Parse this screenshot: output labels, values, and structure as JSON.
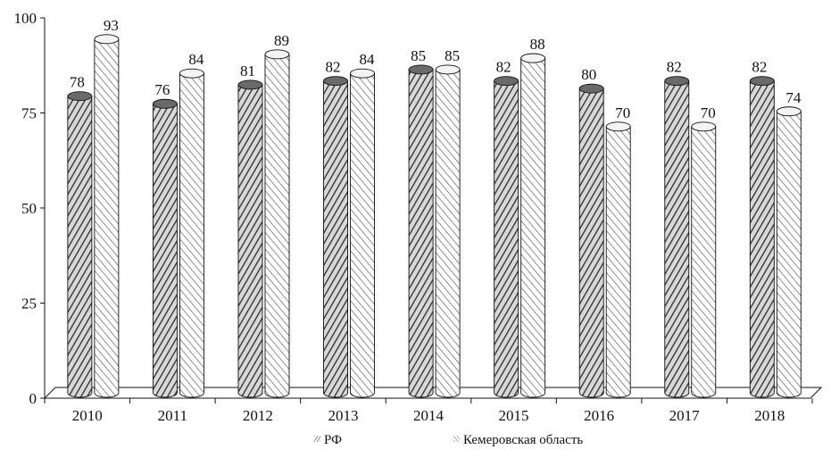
{
  "chart_data": {
    "type": "bar",
    "categories": [
      "2010",
      "2011",
      "2012",
      "2013",
      "2014",
      "2015",
      "2016",
      "2017",
      "2018"
    ],
    "series": [
      {
        "name": "РФ",
        "values": [
          78,
          76,
          81,
          82,
          85,
          82,
          80,
          82,
          82
        ]
      },
      {
        "name": "Кемеровская область",
        "values": [
          93,
          84,
          89,
          84,
          85,
          88,
          70,
          70,
          74
        ]
      }
    ],
    "y_ticks": [
      "0",
      "25",
      "50",
      "75",
      "100"
    ],
    "ylim": [
      0,
      100
    ],
    "grid": false,
    "legend_position": "bottom",
    "style": "3d-cylinder",
    "colors": {
      "series_dark": "#555555",
      "series_light": "#ffffff",
      "stroke": "#111111"
    }
  }
}
